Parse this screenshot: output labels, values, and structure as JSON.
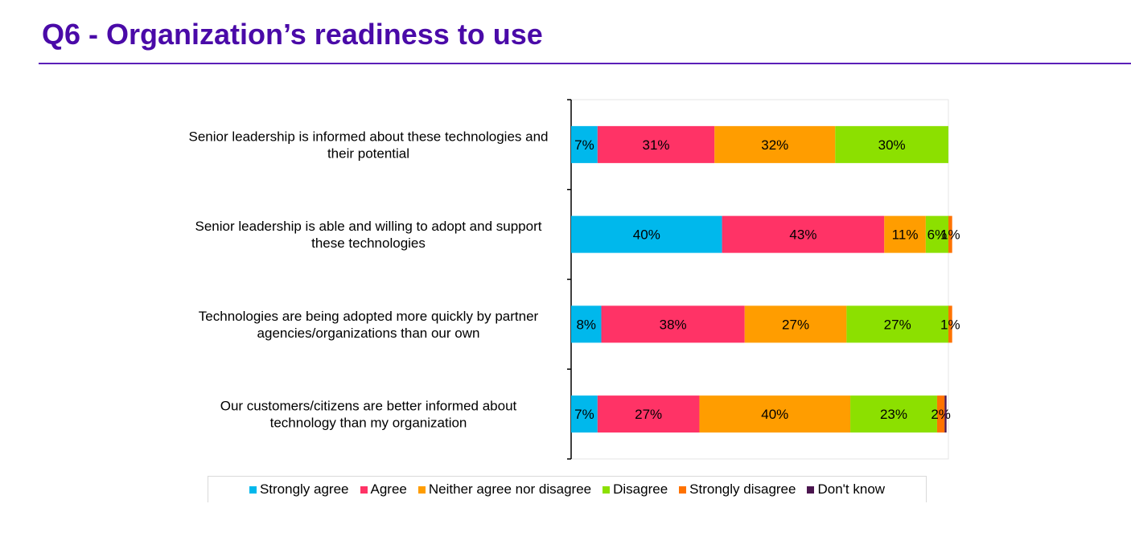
{
  "page": {
    "title": "Q6 - Organization’s readiness to use"
  },
  "colors": {
    "strongly_agree": "#00b8ec",
    "agree": "#ff3366",
    "neither": "#ff9d00",
    "disagree": "#8ce000",
    "strongly_disagree": "#ff7200",
    "dont_know": "#4b164f"
  },
  "chart_data": {
    "type": "bar",
    "orientation": "horizontal",
    "stacked": true,
    "normalized": "100%",
    "categories": [
      [
        "Senior leadership is informed about these technologies and",
        "their potential"
      ],
      [
        "Senior leadership is able and willing to adopt and support",
        "these technologies"
      ],
      [
        "Technologies are being adopted more quickly by partner",
        "agencies/organizations than our own"
      ],
      [
        "Our customers/citizens are better informed about",
        "technology than my organization"
      ]
    ],
    "series": [
      {
        "name": "Strongly agree",
        "color": "#00b8ec",
        "values": [
          7,
          40,
          8,
          7
        ],
        "labels": [
          "7%",
          "40%",
          "8%",
          "7%"
        ]
      },
      {
        "name": "Agree",
        "color": "#ff3366",
        "values": [
          31,
          43,
          38,
          27
        ],
        "labels": [
          "31%",
          "43%",
          "38%",
          "27%"
        ]
      },
      {
        "name": "Neither agree nor disagree",
        "color": "#ff9d00",
        "values": [
          32,
          11,
          27,
          40
        ],
        "labels": [
          "32%",
          "11%",
          "27%",
          "40%"
        ]
      },
      {
        "name": "Disagree",
        "color": "#8ce000",
        "values": [
          30,
          6,
          27,
          23
        ],
        "labels": [
          "30%",
          "6%",
          "27%",
          "23%"
        ]
      },
      {
        "name": "Strongly disagree",
        "color": "#ff7200",
        "values": [
          0,
          1,
          1,
          2
        ],
        "labels": [
          "",
          "1%",
          "1%",
          "2%"
        ]
      },
      {
        "name": "Don't know",
        "color": "#4b164f",
        "values": [
          0,
          0,
          0,
          0.5
        ],
        "labels": [
          "",
          "",
          "",
          ""
        ]
      }
    ],
    "xlim": [
      0,
      100
    ],
    "grid": false,
    "legend_position": "bottom"
  }
}
